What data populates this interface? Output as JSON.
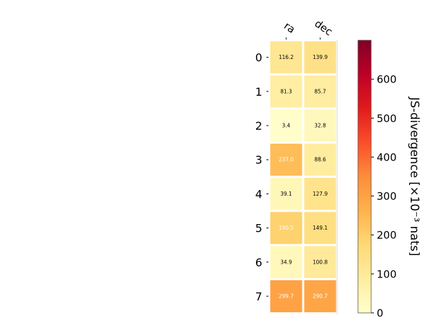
{
  "chart_data": {
    "type": "heatmap",
    "columns": [
      "ra",
      "dec"
    ],
    "rows": [
      "0",
      "1",
      "2",
      "3",
      "4",
      "5",
      "6",
      "7"
    ],
    "values": [
      [
        116.2,
        139.9
      ],
      [
        81.3,
        85.7
      ],
      [
        3.4,
        32.8
      ],
      [
        237.0,
        88.6
      ],
      [
        39.1,
        127.9
      ],
      [
        190.5,
        149.1
      ],
      [
        34.9,
        100.8
      ],
      [
        299.7,
        290.7
      ]
    ],
    "cell_labels": [
      [
        "116.2",
        "139.9"
      ],
      [
        "81.3",
        "85.7"
      ],
      [
        "3.4",
        "32.8"
      ],
      [
        "237.0",
        "88.6"
      ],
      [
        "39.1",
        "127.9"
      ],
      [
        "190.5",
        "149.1"
      ],
      [
        "34.9",
        "100.8"
      ],
      [
        "299.7",
        "290.7"
      ]
    ],
    "colorbar": {
      "label": "JS-divergence [×10⁻³ nats]",
      "range": [
        0,
        700
      ],
      "ticks": [
        "0",
        "100",
        "200",
        "300",
        "400",
        "500",
        "600"
      ],
      "colormap": "YlOrRd"
    },
    "colormap_stops": [
      "#ffffcc",
      "#ffeda0",
      "#fed976",
      "#feb24c",
      "#fd8d3c",
      "#fc4e2a",
      "#e31a1c",
      "#bd0026",
      "#800026"
    ],
    "label_light_color": "#ffffff",
    "label_dark_color": "#000000",
    "light_label_threshold": 180
  }
}
